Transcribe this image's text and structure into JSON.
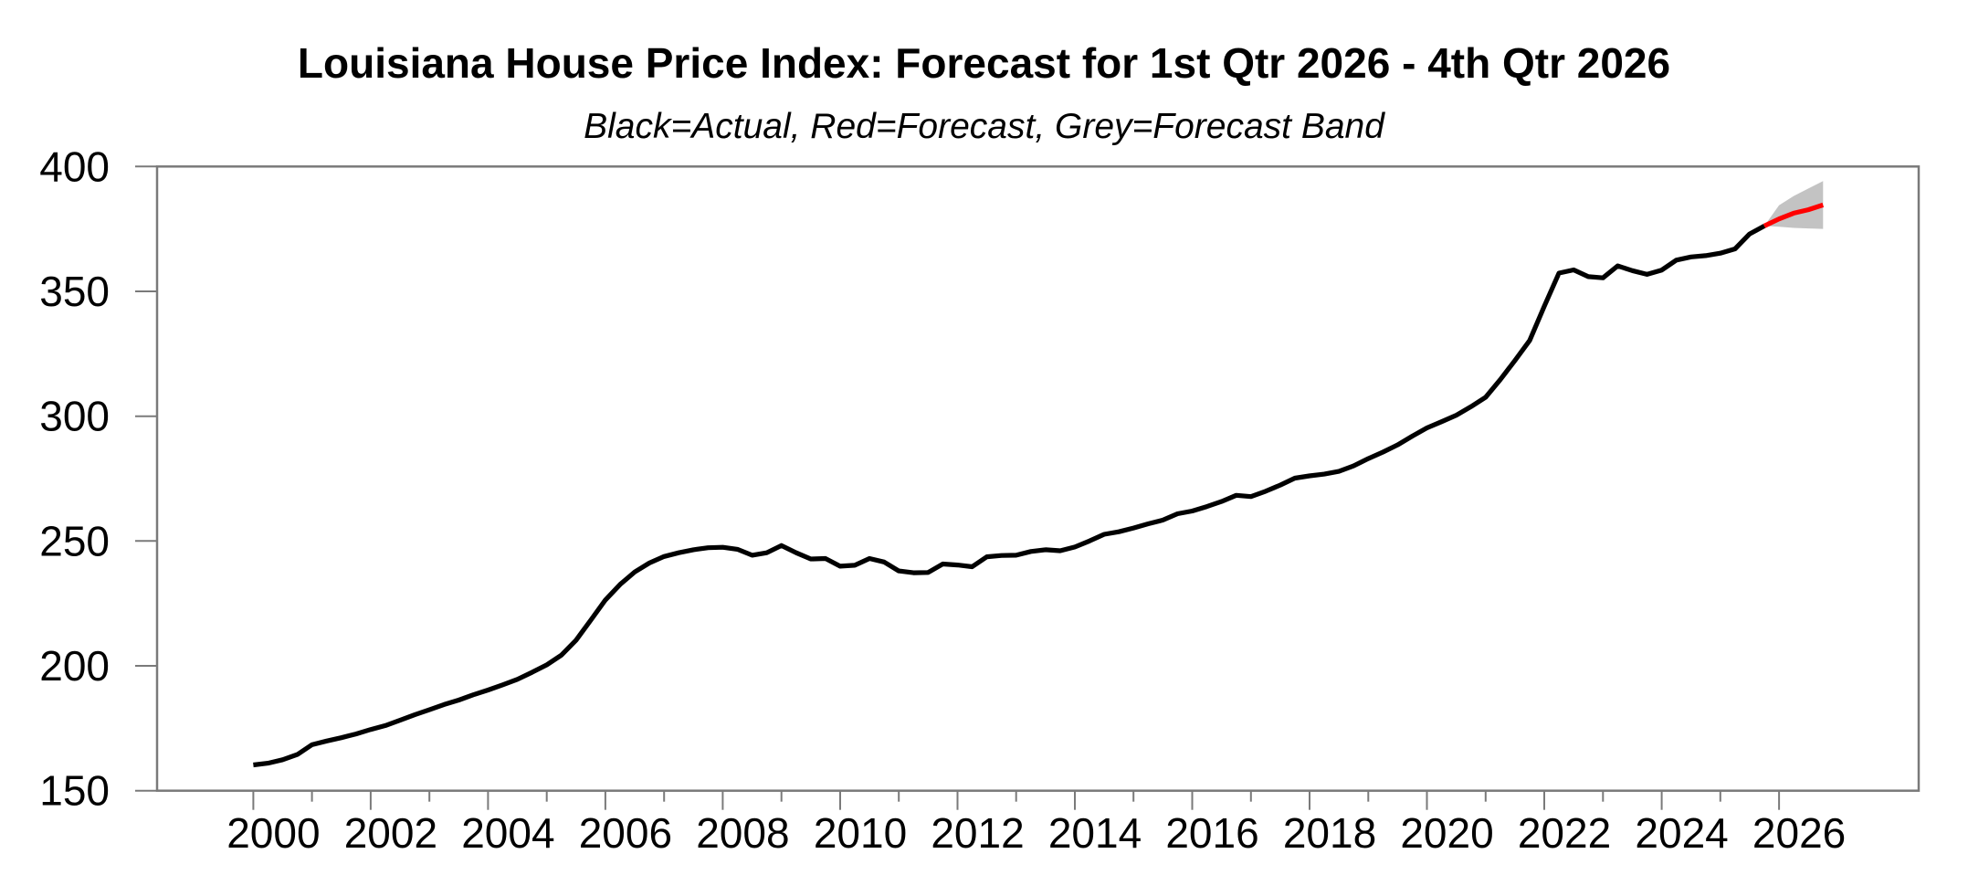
{
  "chart": {
    "title": "Louisiana House Price Index: Forecast for 1st Qtr 2026 - 4th Qtr 2026",
    "subtitle": "Black=Actual, Red=Forecast, Grey=Forecast Band"
  },
  "chart_data": {
    "type": "line",
    "title": "Louisiana House Price Index: Forecast for 1st Qtr 2026 - 4th Qtr 2026",
    "subtitle": "Black=Actual, Red=Forecast, Grey=Forecast Band",
    "xlabel": "",
    "ylabel": "",
    "frequency": "quarterly",
    "x_axis": {
      "range": [
        1998.36,
        2028.38
      ],
      "labeled_ticks": [
        2000,
        2002,
        2004,
        2006,
        2008,
        2010,
        2012,
        2014,
        2016,
        2018,
        2020,
        2022,
        2024,
        2026
      ],
      "minor_ticks": [
        2001,
        2003,
        2005,
        2007,
        2009,
        2011,
        2013,
        2015,
        2017,
        2019,
        2021,
        2023,
        2025
      ]
    },
    "y_axis": {
      "range": [
        150,
        400
      ],
      "ticks": [
        150,
        200,
        250,
        300,
        350,
        400
      ]
    },
    "grid": false,
    "legend": "in subtitle",
    "series": [
      {
        "name": "Actual",
        "color": "#000000",
        "start_t": 2000.0,
        "step": 0.25,
        "values": [
          160.3,
          161.0,
          162.4,
          164.5,
          168.4,
          169.9,
          171.2,
          172.7,
          174.5,
          176.1,
          178.2,
          180.4,
          182.4,
          184.5,
          186.3,
          188.4,
          190.3,
          192.4,
          194.6,
          197.4,
          200.4,
          204.3,
          210.3,
          218.3,
          226.4,
          232.6,
          237.6,
          241.2,
          243.8,
          245.3,
          246.5,
          247.3,
          247.5,
          246.7,
          244.3,
          245.3,
          248.2,
          245.3,
          242.8,
          243.0,
          239.9,
          240.3,
          243.0,
          241.6,
          238.0,
          237.3,
          237.4,
          240.8,
          240.4,
          239.7,
          243.7,
          244.2,
          244.3,
          245.8,
          246.5,
          246.1,
          247.6,
          250.0,
          252.7,
          253.7,
          255.2,
          256.9,
          258.4,
          260.9,
          262.0,
          263.8,
          265.8,
          268.3,
          267.8,
          269.9,
          272.4,
          275.2,
          276.1,
          276.8,
          277.9,
          280.1,
          283.0,
          285.6,
          288.5,
          292.0,
          295.3,
          297.8,
          300.4,
          303.8,
          307.6,
          314.6,
          322.3,
          330.3,
          344.0,
          357.3,
          358.6,
          355.9,
          355.4,
          360.2,
          358.3,
          356.8,
          358.5,
          362.5,
          363.8,
          364.3,
          365.3,
          367.0,
          373.0,
          376.2
        ]
      },
      {
        "name": "Forecast",
        "color": "#ff0000",
        "start_t": 2025.75,
        "step": 0.25,
        "values": [
          376.2,
          379.0,
          381.3,
          382.7,
          384.6
        ]
      }
    ],
    "band": {
      "name": "Forecast Band",
      "color": "#c3c3c3",
      "start_t": 2025.75,
      "step": 0.25,
      "upper": [
        376.2,
        384.5,
        388.2,
        391.2,
        394.2
      ],
      "lower": [
        376.2,
        375.9,
        375.4,
        375.2,
        375.0
      ]
    },
    "axis_color": "#7a7a7a",
    "text_color": "#000000",
    "background_color": "#ffffff"
  }
}
